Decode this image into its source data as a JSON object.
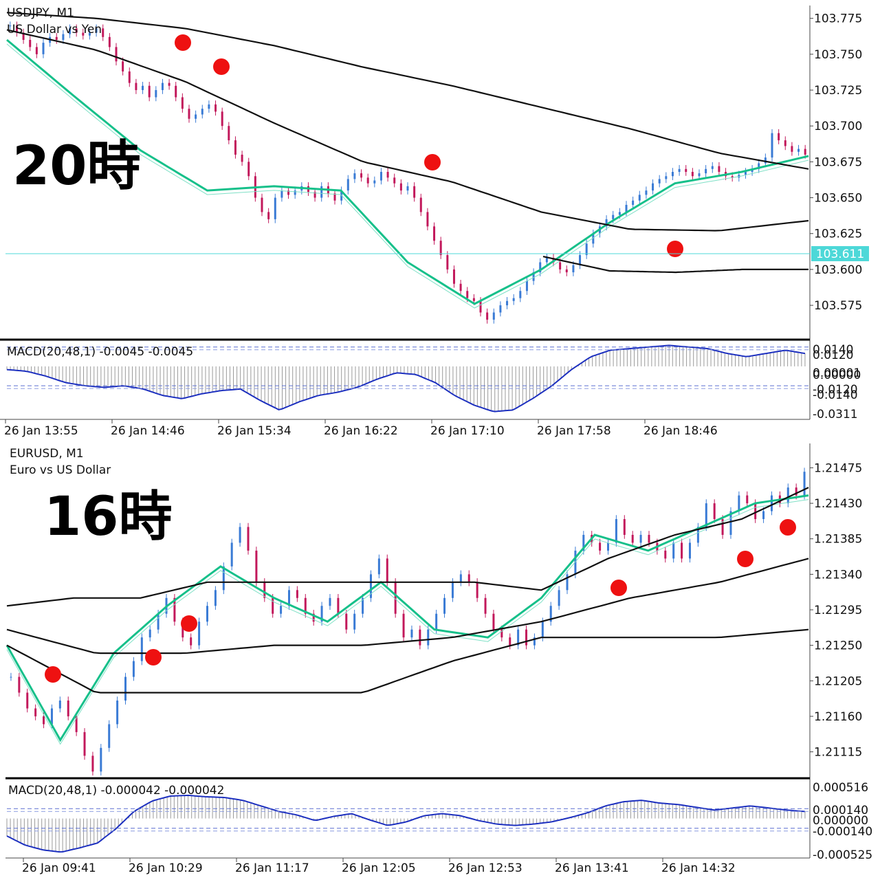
{
  "chart_data": [
    {
      "type": "candlestick",
      "symbol": "USDJPY, M1",
      "description": "US Dollar vs Yen",
      "annotation": "20時",
      "yticks": [
        "103.775",
        "103.750",
        "103.725",
        "103.700",
        "103.675",
        "103.650",
        "103.625",
        "103.600",
        "103.575"
      ],
      "ylim": [
        103.553,
        103.783
      ],
      "current_price": "103.611",
      "xticks": [
        "26 Jan 13:55",
        "26 Jan 14:46",
        "26 Jan 15:34",
        "26 Jan 16:22",
        "26 Jan 17:10",
        "26 Jan 17:58",
        "26 Jan 18:46"
      ],
      "close": [
        103.77,
        103.765,
        103.76,
        103.755,
        103.75,
        103.758,
        103.762,
        103.76,
        103.764,
        103.768,
        103.765,
        103.763,
        103.765,
        103.768,
        103.762,
        103.755,
        103.745,
        103.738,
        103.73,
        103.725,
        103.728,
        103.72,
        103.725,
        103.73,
        103.728,
        103.72,
        103.712,
        103.705,
        103.708,
        103.712,
        103.715,
        103.71,
        103.7,
        103.69,
        103.68,
        103.675,
        103.665,
        103.65,
        103.64,
        103.635,
        103.65,
        103.655,
        103.652,
        103.655,
        103.658,
        103.654,
        103.65,
        103.658,
        103.653,
        103.648,
        103.655,
        103.663,
        103.667,
        103.664,
        103.66,
        103.662,
        103.668,
        103.664,
        103.66,
        103.655,
        103.658,
        103.65,
        103.64,
        103.63,
        103.62,
        103.61,
        103.6,
        103.59,
        103.585,
        103.58,
        103.578,
        103.57,
        103.565,
        103.57,
        103.575,
        103.578,
        103.58,
        103.585,
        103.592,
        103.598,
        103.605,
        103.608,
        103.605,
        103.6,
        103.598,
        103.603,
        103.61,
        103.618,
        103.625,
        103.63,
        103.635,
        103.638,
        103.64,
        103.645,
        103.648,
        103.652,
        103.655,
        103.66,
        103.663,
        103.665,
        103.668,
        103.67,
        103.668,
        103.665,
        103.667,
        103.67,
        103.672,
        103.668,
        103.665,
        103.664,
        103.666,
        103.668,
        103.67,
        103.674,
        103.678,
        103.695,
        103.69,
        103.686,
        103.682,
        103.684,
        103.68
      ],
      "moving_averages": [
        {
          "name": "MA fast",
          "values": [
            103.76,
            103.721,
            103.683,
            103.655,
            103.658,
            103.655,
            103.605,
            103.576,
            103.6,
            103.632,
            103.66,
            103.668,
            103.679
          ],
          "color": "#16c08a"
        },
        {
          "name": "Envelope upper outer",
          "values": [
            103.779,
            103.775,
            103.768,
            103.756,
            103.741,
            103.728,
            103.713,
            103.698,
            103.681,
            103.67
          ],
          "color": "#111111"
        },
        {
          "name": "Envelope upper inner",
          "values": [
            103.767,
            103.753,
            103.731,
            103.702,
            103.675,
            103.661,
            103.64,
            103.628,
            103.627,
            103.634
          ],
          "color": "#111111"
        },
        {
          "name": "Envelope lower",
          "values": [
            103.609,
            103.599,
            103.598,
            103.6,
            103.6
          ],
          "color": "#111111"
        }
      ],
      "macd": {
        "label": "MACD(20,48,1) -0.0045 -0.0045",
        "yticks": [
          "0.0140",
          "0.0120",
          "0.00001",
          "0.00000",
          "-0.0120",
          "-0.0140",
          "-0.0311"
        ],
        "ylim": [
          -0.0311,
          0.014
        ],
        "values": [
          -0.002,
          -0.003,
          -0.006,
          -0.01,
          -0.012,
          -0.013,
          -0.012,
          -0.014,
          -0.018,
          -0.02,
          -0.017,
          -0.015,
          -0.014,
          -0.021,
          -0.027,
          -0.022,
          -0.018,
          -0.016,
          -0.013,
          -0.008,
          -0.004,
          -0.005,
          -0.01,
          -0.018,
          -0.024,
          -0.028,
          -0.027,
          -0.02,
          -0.012,
          -0.002,
          0.006,
          0.01,
          0.011,
          0.012,
          0.013,
          0.012,
          0.011,
          0.008,
          0.006,
          0.008,
          0.01,
          0.008
        ]
      },
      "markers": 5
    },
    {
      "type": "candlestick",
      "symbol": "EURUSD, M1",
      "description": "Euro vs US Dollar",
      "annotation": "16時",
      "yticks": [
        "1.21475",
        "1.21430",
        "1.21385",
        "1.21340",
        "1.21295",
        "1.21250",
        "1.21205",
        "1.21160",
        "1.21115"
      ],
      "ylim": [
        1.21085,
        1.21505
      ],
      "xticks": [
        "26 Jan 09:41",
        "26 Jan 10:29",
        "26 Jan 11:17",
        "26 Jan 12:05",
        "26 Jan 12:53",
        "26 Jan 13:41",
        "26 Jan 14:32"
      ],
      "close": [
        1.2121,
        1.2119,
        1.2117,
        1.2116,
        1.2115,
        1.2117,
        1.2118,
        1.2116,
        1.2114,
        1.2111,
        1.2109,
        1.2112,
        1.2115,
        1.2118,
        1.2121,
        1.2123,
        1.2126,
        1.2127,
        1.2129,
        1.2131,
        1.2128,
        1.2126,
        1.2125,
        1.2128,
        1.213,
        1.2132,
        1.2135,
        1.2138,
        1.214,
        1.2137,
        1.2133,
        1.2131,
        1.2129,
        1.213,
        1.2132,
        1.2131,
        1.2129,
        1.2128,
        1.213,
        1.2131,
        1.2129,
        1.2127,
        1.2129,
        1.2131,
        1.2134,
        1.2136,
        1.2133,
        1.2129,
        1.2126,
        1.2127,
        1.2125,
        1.2127,
        1.2129,
        1.2131,
        1.2133,
        1.2134,
        1.2133,
        1.2131,
        1.2129,
        1.2127,
        1.2126,
        1.2125,
        1.2127,
        1.2125,
        1.2126,
        1.2128,
        1.213,
        1.2132,
        1.2134,
        1.2137,
        1.2139,
        1.2138,
        1.2137,
        1.2138,
        1.2141,
        1.2139,
        1.2138,
        1.2139,
        1.2138,
        1.2137,
        1.2136,
        1.2138,
        1.2136,
        1.2138,
        1.214,
        1.2143,
        1.2141,
        1.2139,
        1.2142,
        1.2144,
        1.2143,
        1.2141,
        1.2142,
        1.2144,
        1.2143,
        1.2145,
        1.2144,
        1.2147
      ],
      "moving_averages": [
        {
          "name": "MA fast",
          "values": [
            1.2125,
            1.2113,
            1.2124,
            1.213,
            1.2135,
            1.2131,
            1.2128,
            1.2133,
            1.2127,
            1.2126,
            1.2131,
            1.2139,
            1.2137,
            1.214,
            1.2143,
            1.2144
          ],
          "color": "#16c08a"
        },
        {
          "name": "Envelope upper",
          "values": [
            1.213,
            1.2131,
            1.2131,
            1.2133,
            1.2133,
            1.2133,
            1.2133,
            1.2133,
            1.2132,
            1.2136,
            1.2139,
            1.2141,
            1.2145
          ],
          "color": "#111111"
        },
        {
          "name": "Envelope middle",
          "values": [
            1.2127,
            1.2124,
            1.2124,
            1.2125,
            1.2125,
            1.2126,
            1.2128,
            1.2131,
            1.2133,
            1.2136
          ],
          "color": "#111111"
        },
        {
          "name": "Envelope lower",
          "values": [
            1.2125,
            1.2119,
            1.2119,
            1.2119,
            1.2119,
            1.2123,
            1.2126,
            1.2126,
            1.2126,
            1.2127
          ],
          "color": "#111111"
        }
      ],
      "macd": {
        "label": "MACD(20,48,1) -0.000042 -0.000042",
        "yticks": [
          "0.000516",
          "0.000140",
          "0.000000",
          "-0.000140",
          "-0.000525"
        ],
        "ylim": [
          -0.000525,
          0.000516
        ],
        "values": [
          -0.00025,
          -0.00038,
          -0.00045,
          -0.00048,
          -0.00042,
          -0.00035,
          -0.00015,
          0.0001,
          0.00025,
          0.00032,
          0.00033,
          0.00031,
          0.0003,
          0.00026,
          0.00018,
          0.0001,
          5e-05,
          -3e-05,
          3e-05,
          7e-05,
          -2e-05,
          -0.0001,
          -5e-05,
          4e-05,
          7e-05,
          4e-05,
          -3e-05,
          -8e-05,
          -0.0001,
          -8e-05,
          -5e-05,
          1e-05,
          8e-05,
          0.00018,
          0.00024,
          0.00026,
          0.00022,
          0.0002,
          0.00016,
          0.00012,
          0.00015,
          0.00018,
          0.00015,
          0.00012,
          0.0001
        ]
      },
      "markers": 7
    }
  ]
}
